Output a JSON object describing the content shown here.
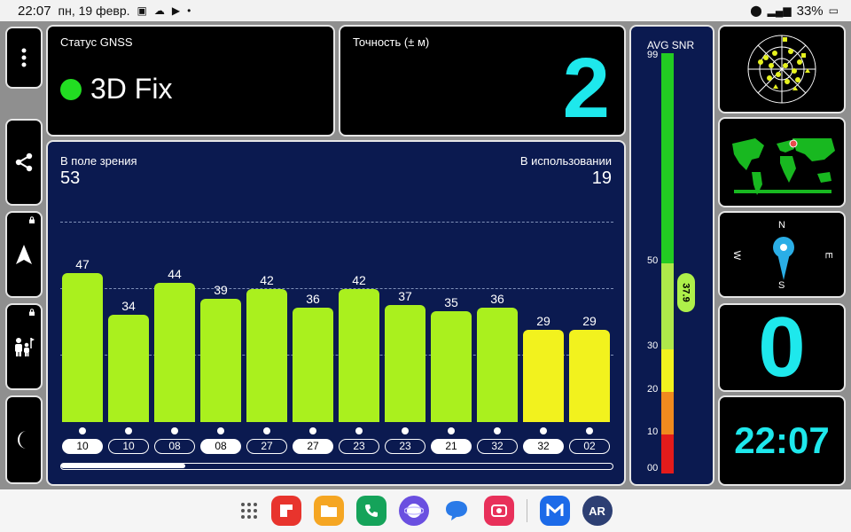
{
  "statusbar": {
    "time": "22:07",
    "date": "пн, 19 февр.",
    "battery": "33%"
  },
  "gnss_status": {
    "label": "Статус GNSS",
    "value": "3D Fix"
  },
  "accuracy": {
    "label": "Точность (± м)",
    "value": "2"
  },
  "sky": {
    "in_view_label": "В поле зрения",
    "in_view": "53",
    "in_use_label": "В использовании",
    "in_use": "19",
    "bars": [
      {
        "snr": 47,
        "label": "47",
        "id": "10",
        "color": "#aaf01e",
        "id_style": "filled"
      },
      {
        "snr": 34,
        "label": "34",
        "id": "10",
        "color": "#aaf01e",
        "id_style": "outline"
      },
      {
        "snr": 44,
        "label": "44",
        "id": "08",
        "color": "#aaf01e",
        "id_style": "outline"
      },
      {
        "snr": 39,
        "label": "39",
        "id": "08",
        "color": "#aaf01e",
        "id_style": "filled"
      },
      {
        "snr": 42,
        "label": "42",
        "id": "27",
        "color": "#aaf01e",
        "id_style": "outline"
      },
      {
        "snr": 36,
        "label": "36",
        "id": "27",
        "color": "#aaf01e",
        "id_style": "filled"
      },
      {
        "snr": 42,
        "label": "42",
        "id": "23",
        "color": "#aaf01e",
        "id_style": "outline"
      },
      {
        "snr": 37,
        "label": "37",
        "id": "23",
        "color": "#aaf01e",
        "id_style": "outline"
      },
      {
        "snr": 35,
        "label": "35",
        "id": "21",
        "color": "#aaf01e",
        "id_style": "filled"
      },
      {
        "snr": 36,
        "label": "36",
        "id": "32",
        "color": "#aaf01e",
        "id_style": "outline"
      },
      {
        "snr": 29,
        "label": "29",
        "id": "32",
        "color": "#f2f21e",
        "id_style": "filled"
      },
      {
        "snr": 29,
        "label": "29",
        "id": "02",
        "color": "#f2f21e",
        "id_style": "outline"
      }
    ]
  },
  "avg_snr": {
    "label": "AVG SNR",
    "value": "37.9",
    "ticks": [
      "99",
      "50",
      "30",
      "20",
      "10",
      "00"
    ]
  },
  "compass": {
    "n": "N",
    "s": "S",
    "e": "E",
    "w": "W"
  },
  "satellites_counter": "0",
  "clock": "22:07",
  "icons": {
    "menu": "more-vertical-icon",
    "share": "share-icon",
    "navigation": "navigation-arrow-icon",
    "family": "family-icon",
    "night": "moon-icon"
  },
  "colors": {
    "accent": "#1ee8ec",
    "panel_navy": "#0b1a50",
    "fix_green": "#22dd22"
  },
  "dock": {
    "apps": [
      "app-drawer",
      "flipboard",
      "files",
      "phone",
      "internet",
      "messages",
      "screen-recorder",
      "mail",
      "ar-zone"
    ],
    "ar_label": "AR"
  }
}
